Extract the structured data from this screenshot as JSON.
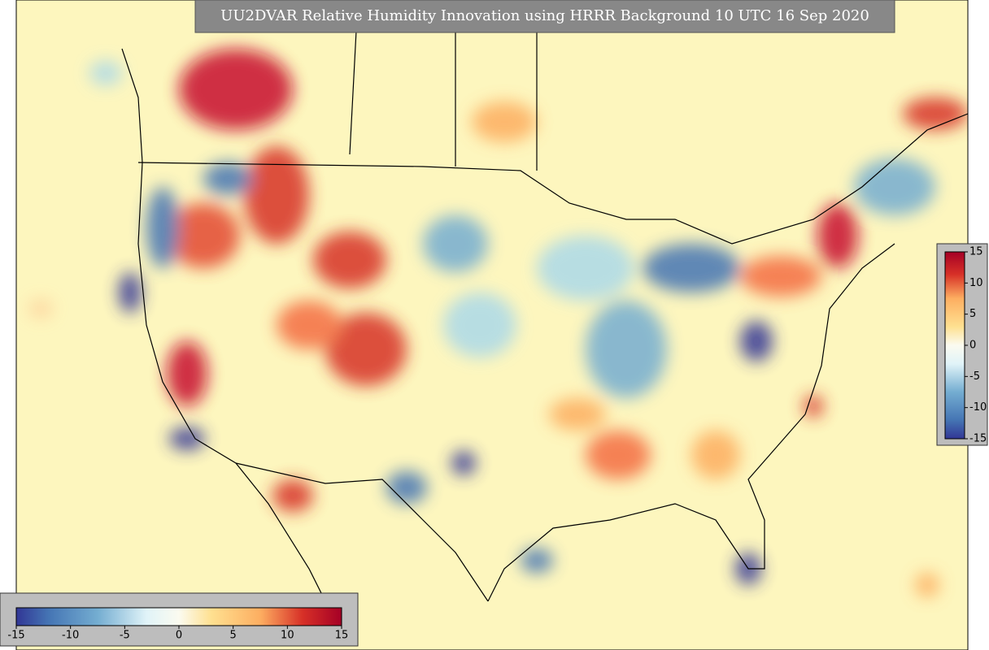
{
  "title": "UU2DVAR Relative Humidity Innovation using HRRR Background 10 UTC 16 Sep 2020",
  "colorbar_bottom": {
    "lim": [
      -15,
      15
    ],
    "ticks": [
      -15,
      -10,
      -5,
      0,
      5,
      10,
      15
    ]
  },
  "colorbar_right": {
    "lim": [
      -15,
      15
    ],
    "ticks": [
      -15,
      -10,
      -5,
      0,
      5,
      10,
      15
    ]
  }
}
